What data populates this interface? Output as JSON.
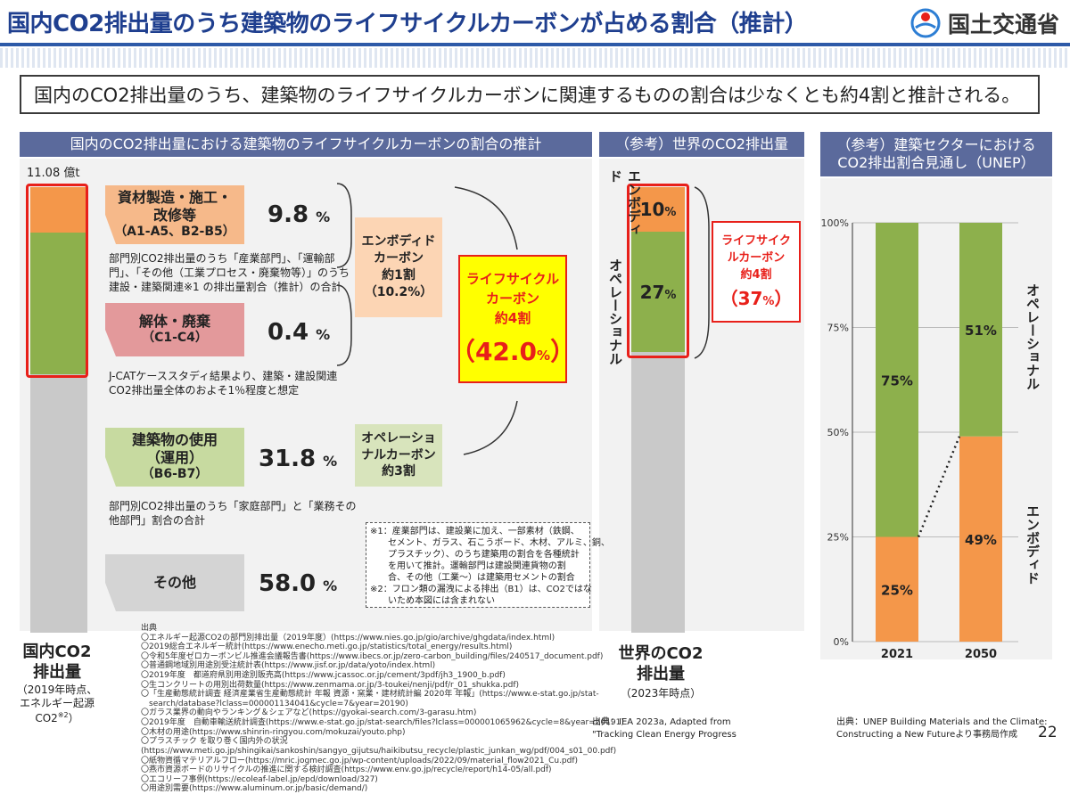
{
  "header": {
    "title": "国内CO2排出量のうち建築物のライフサイクルカーボンが占める割合（推計）",
    "ministry": "国土交通省",
    "summary": "国内のCO2排出量のうち、建築物のライフサイクルカーボンに関連するものの割合は少なくとも約4割と推計される。"
  },
  "left_panel": {
    "header": "国内のCO2排出量における建築物のライフサイクルカーボンの割合の推計",
    "total": "11.08 億t",
    "caption_main": "国内CO2\n排出量",
    "caption_sub": "（2019年時点、\nエネルギー起源\nCO2",
    "caption_note": "※2",
    "caption_end": "）",
    "categories": [
      {
        "name": "資材製造・施工・\n改修等",
        "code": "（A1-A5、B2-B5）",
        "value": "9.8",
        "unit": "%",
        "desc": "部門別CO2排出量のうち「産業部門」、「運輸部\n門」、「その他（工業プロセス・廃棄物等）」のうち\n建設・建築関連※1 の排出量割合（推計）の合計"
      },
      {
        "name": "解体・廃棄",
        "code": "（C1-C4）",
        "value": "0.4",
        "unit": "%",
        "desc": "J-CATケーススタディ結果より、建築・建設関連\nCO2排出量全体のおよそ1％程度と想定"
      },
      {
        "name": "建築物の使用\n（運用）",
        "code": "（B6-B7）",
        "value": "31.8",
        "unit": "%",
        "desc": "部門別CO2排出量のうち「家庭部門」と「業務その\n他部門」割合の合計"
      },
      {
        "name": "その他",
        "code": "",
        "value": "58.0",
        "unit": "%",
        "desc": ""
      }
    ],
    "embodied_box": "エンボディド\nカーボン\n約1割\n（10.2%）",
    "operational_box": "オペレーショ\nナルカーボン\n約3割",
    "lifecycle_box": {
      "line1": "ライフサイクル\nカーボン\n約4割",
      "value": "42.0",
      "unit": "%"
    },
    "notes": "※1：産業部門は、建設業に加え、一部素材（鉄鋼、\n　　セメント、ガラス、石こうボード、木材、アルミ、銅、\n　　プラスチック）、のうち建築用の割合を各種統計\n　　を用いて推計。運輸部門は建設関連貨物の割\n　　合、その他（工業～）は建築用セメントの割合\n※2：フロン類の漏洩による排出（B1）は、CO2ではな\n　　いため本図には含まれない",
    "sources": [
      "出典",
      "〇エネルギー起源CO2の部門別排出量（2019年度）(https://www.nies.go.jp/gio/archive/ghgdata/index.html)",
      "〇2019総合エネルギー統計(https://www.enecho.meti.go.jp/statistics/total_energy/results.html)",
      "〇令和5年度ゼロカーボンビル推進会議報告書(https://www.ibecs.or.jp/zero-carbon_building/files/240517_document.pdf)",
      "〇普通鋼地域別用途別受注統計表(https://www.jisf.or.jp/data/yoto/index.html)",
      "〇2019年度　都道府県別用途別販売高(https://www.jcassoc.or.jp/cement/3pdf/jh3_1900_b.pdf)",
      "〇生コンクリートの用別出荷数量(https://www.zenmama.or.jp/3-toukei/nenji/pdf/r_01_shukka.pdf)",
      "〇「生産動態統計調査 経済産業省生産動態統計 年報 資源・窯業・建材統計編 2020年 年報」(https://www.e-stat.go.jp/stat-",
      "　search/database?lclass=000001134041&cycle=7&year=20190)",
      "〇ガラス業界の動向やランキング＆シェアなど(https://gyokai-search.com/3-garasu.htm)",
      "〇2019年度　自動車輸送統計調査(https://www.e-stat.go.jp/stat-search/files?lclass=000001065962&cycle=8&year=20191)",
      "〇木材の用途(https://www.shinrin-ringyou.com/mokuzai/youto.php)",
      "〇プラスチック を取り巻く国内外の状況",
      "(https://www.meti.go.jp/shingikai/sankoshin/sangyo_gijutsu/haikibutsu_recycle/plastic_junkan_wg/pdf/004_s01_00.pdf)",
      "〇紙物資循マテリアルフロー(https://mric.jogmec.go.jp/wp-content/uploads/2022/09/material_flow2021_Cu.pdf)",
      "〇燕市資源ボードのリサイクルの推進に関する検討調査(https://www.env.go.jp/recycle/report/h14-05/all.pdf)",
      "〇エコリーフ事例(https://ecoleaf-label.jp/epd/download/327)",
      "〇用途別需要(https://www.aluminum.or.jp/basic/demand/)"
    ]
  },
  "middle_panel": {
    "header": "（参考）世界のCO2排出量",
    "embodied_label": "エンボディド",
    "operational_label": "オペレーショナル",
    "lifecycle_label": "ライフサイク\nルカーボン\n約4割",
    "lifecycle_value": "37",
    "lifecycle_unit": "%",
    "caption_main": "世界のCO2\n排出量",
    "caption_sub": "（2023年時点）",
    "source": "出典：IEA 2023a, Adapted from\n\"Tracking Clean Energy Progress"
  },
  "right_panel": {
    "header": "（参考）建築セクターにおける\nCO2排出割合見通し（UNEP）",
    "operational_label": "オペレーショナル",
    "embodied_label": "エンボディド",
    "source": "出典：UNEP Building Materials and the Climate:\nConstructing a New Futureより事務局作成",
    "page_number": "22"
  },
  "colors": {
    "embodied": "#f4974a",
    "operational": "#8db04c",
    "other": "#c9c9c9",
    "accent_red": "#e8201a",
    "header_blue": "#1f3f8f"
  },
  "chart_data": [
    {
      "type": "stacked_bar",
      "title": "国内CO2排出量（2019年時点）",
      "total": "11.08 億t",
      "series": [
        {
          "name": "資材製造・施工・改修等",
          "values": [
            9.8
          ]
        },
        {
          "name": "解体・廃棄",
          "values": [
            0.4
          ]
        },
        {
          "name": "建築物の使用（運用）",
          "values": [
            31.8
          ]
        },
        {
          "name": "その他",
          "values": [
            58.0
          ]
        }
      ],
      "units": "%"
    },
    {
      "type": "stacked_bar",
      "title": "世界のCO2排出量（2023年時点）",
      "series": [
        {
          "name": "エンボディド",
          "values": [
            10
          ]
        },
        {
          "name": "オペレーショナル",
          "values": [
            27
          ]
        },
        {
          "name": "その他",
          "values": [
            63
          ]
        }
      ],
      "units": "%"
    },
    {
      "type": "stacked_bar",
      "title": "建築セクターにおけるCO2排出割合見通し（UNEP）",
      "categories": [
        "2021",
        "2050"
      ],
      "series": [
        {
          "name": "エンボディド",
          "values": [
            25,
            49
          ]
        },
        {
          "name": "オペレーショナル",
          "values": [
            75,
            51
          ]
        }
      ],
      "ylim": [
        0,
        100
      ],
      "yticks": [
        "0%",
        "25%",
        "50%",
        "75%",
        "100%"
      ],
      "units": "%"
    }
  ]
}
